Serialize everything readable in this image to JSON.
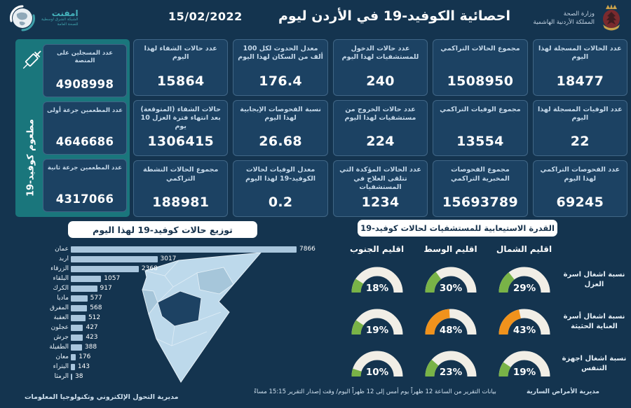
{
  "colors": {
    "background": "#14344F",
    "card": "#1C4263",
    "teal_panel": "#1A767C",
    "bar_fill": "#A9C6DD",
    "gauge_green": "#79B347",
    "gauge_orange": "#F0921C",
    "gauge_track": "#F1EEE6",
    "badge_bg": "#FFFFFF",
    "badge_text": "#16324C"
  },
  "header": {
    "title": "احصائية الكوفيد-19 في الأردن ليوم",
    "date": "15/02/2022",
    "ministry_line1": "وزارة الصحة",
    "ministry_line2": "المملكة الأردنية الهاشمية",
    "org_name": "امفنت",
    "org_sub1": "الشبكة الشرق اوسطية",
    "org_sub2": "للصحة العامة"
  },
  "vaccination": {
    "vertical_label": "مطعوم كوفيد-19",
    "boxes": [
      {
        "label": "عدد المسجلين على المنصة",
        "value": "4908998"
      },
      {
        "label": "عدد المطعمين جرعة أولى",
        "value": "4646686"
      },
      {
        "label": "عدد المطعمين جرعة ثانية",
        "value": "4317066"
      }
    ]
  },
  "stats_grid": [
    {
      "label": "عدد الحالات المسجلة لهذا اليوم",
      "value": "18477"
    },
    {
      "label": "مجموع الحالات التراكمي",
      "value": "1508950"
    },
    {
      "label": "عدد حالات الدخول للمستشفيات لهذا اليوم",
      "value": "240"
    },
    {
      "label": "معدل الحدوث لكل 100 ألف من السكان لهذا اليوم",
      "value": "176.4"
    },
    {
      "label": "عدد حالات الشفاء لهذا اليوم",
      "value": "15864"
    },
    {
      "label": "عدد الوفيات المسجلة لهذا اليوم",
      "value": "22"
    },
    {
      "label": "مجموع الوفيات التراكمي",
      "value": "13554"
    },
    {
      "label": "عدد حالات الخروج من مستشفيات لهذا اليوم",
      "value": "224"
    },
    {
      "label": "نسبة الفحوصات الإيجابية لهذا اليوم",
      "value": "26.68"
    },
    {
      "label": "حالات الشفاء (المتوقعة) بعد انتهاء فترة العزل 10 يوم",
      "value": "1306415"
    },
    {
      "label": "عدد الفحوصات التراكمي لهذا اليوم",
      "value": "69245"
    },
    {
      "label": "مجموع الفحوصات المخبرية التراكمي",
      "value": "15693789"
    },
    {
      "label": "عدد الحالات المؤكدة التي تتلقى العلاج في المستشفيات",
      "value": "1234"
    },
    {
      "label": "معدل الوفيات لحالات الكوفيد-19 لهذا اليوم",
      "value": "0.2"
    },
    {
      "label": "مجموع الحالات النشطة التراكمي",
      "value": "188981"
    }
  ],
  "chart_data": [
    {
      "type": "bar",
      "orientation": "horizontal",
      "title": "توزيع حالات كوفيد-19 لهذا اليوم",
      "categories": [
        "عمان",
        "اربد",
        "الزرقاء",
        "البلقاء",
        "الكرك",
        "ماديا",
        "المفرق",
        "العقبة",
        "عجلون",
        "جرش",
        "الطفيلة",
        "معان",
        "البتراء",
        "الرمثا"
      ],
      "values": [
        7866,
        3017,
        2368,
        1057,
        917,
        577,
        568,
        512,
        427,
        423,
        388,
        176,
        143,
        38
      ],
      "xlim": [
        0,
        7866
      ],
      "grid": false
    },
    {
      "type": "gauge",
      "title": "القدرة الاستيعابية للمستشفيات لحالات كوفيد-19",
      "unit": "%",
      "columns": [
        "اقليم الشمال",
        "اقليم الوسط",
        "اقليم الجنوب"
      ],
      "track_color": "#F1EEE6",
      "rows": [
        {
          "label": "نسبة اشغال اسرة العزل",
          "values": [
            29,
            30,
            18
          ],
          "colors": [
            "#79B347",
            "#79B347",
            "#79B347"
          ]
        },
        {
          "label": "نسبة اشغال أسرة العناية الحثيثة",
          "values": [
            43,
            48,
            19
          ],
          "colors": [
            "#F0921C",
            "#F0921C",
            "#79B347"
          ]
        },
        {
          "label": "نسبة اشغال اجهزة التنفس",
          "values": [
            19,
            23,
            10
          ],
          "colors": [
            "#79B347",
            "#79B347",
            "#79B347"
          ]
        }
      ]
    }
  ],
  "footer": {
    "left": "مديرية التحول الإلكتروني وتكنولوجيا المعلومات",
    "center": "بيانات التقرير من الساعة 12 ظهراً يوم أمس إلى 12 ظهراً اليوم/ وقت إصدار التقرير 15:15 مساءً",
    "right": "مديرية الأمراض السارية"
  }
}
